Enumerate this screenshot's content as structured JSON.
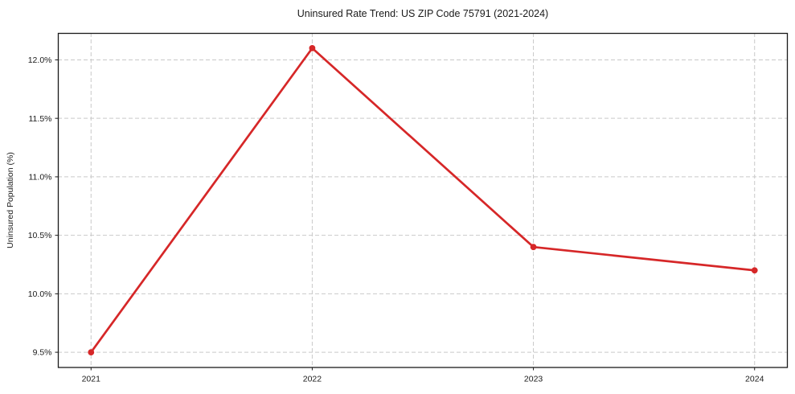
{
  "chart_data": {
    "type": "line",
    "title": "Uninsured Rate Trend: US ZIP Code 75791 (2021-2024)",
    "xlabel": "",
    "ylabel": "Uninsured Population (%)",
    "categories": [
      2021,
      2022,
      2023,
      2024
    ],
    "x_tick_labels": [
      "2021",
      "2022",
      "2023",
      "2024"
    ],
    "series": [
      {
        "name": "Uninsured rate",
        "values": [
          9.5,
          12.1,
          10.4,
          10.2
        ]
      }
    ],
    "y_ticks": [
      9.5,
      10.0,
      10.5,
      11.0,
      11.5,
      12.0
    ],
    "y_tick_labels": [
      "9.5%",
      "10.0%",
      "10.5%",
      "11.0%",
      "11.5%",
      "12.0%"
    ],
    "xlim": [
      2020.85,
      2024.15
    ],
    "ylim": [
      9.37,
      12.23
    ],
    "grid": "dashed, both axes",
    "legend_position": "none",
    "colors": {
      "line": "#d62728",
      "marker": "#d62728",
      "grid": "#c9c9c9",
      "spine": "#1a1a1a",
      "text": "#1a1a1a",
      "background": "#ffffff"
    }
  }
}
